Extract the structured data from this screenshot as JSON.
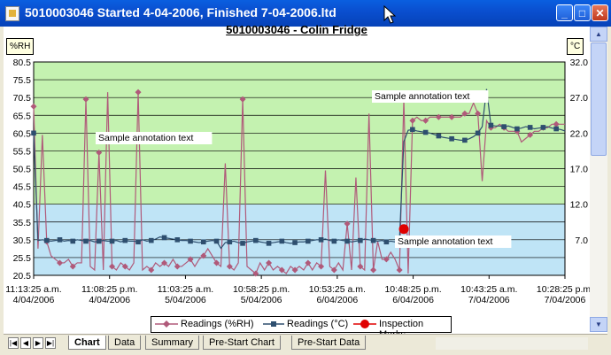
{
  "window": {
    "title": "5010003046 Started 4-04-2006, Finished 7-04-2006.ltd",
    "minimize": "_",
    "maximize": "□",
    "close": "✕"
  },
  "chart_data": {
    "type": "line",
    "title": "5010003046 - Colin Fridge",
    "left_axis": {
      "unit": "%RH",
      "ticks": [
        "80.5",
        "75.5",
        "70.5",
        "65.5",
        "60.5",
        "55.5",
        "50.5",
        "45.5",
        "40.5",
        "35.5",
        "30.5",
        "25.5",
        "20.5"
      ],
      "range": [
        20.5,
        80.5
      ]
    },
    "right_axis": {
      "unit": "°C",
      "ticks": [
        "32.0",
        "27.0",
        "22.0",
        "17.0",
        "12.0",
        "7.0"
      ],
      "range": [
        2.0,
        32.0
      ]
    },
    "x_ticks": [
      {
        "time": "11:13:25 a.m.",
        "date": "4/04/2006"
      },
      {
        "time": "11:08:25 p.m.",
        "date": "4/04/2006"
      },
      {
        "time": "11:03:25 a.m.",
        "date": "5/04/2006"
      },
      {
        "time": "10:58:25 p.m.",
        "date": "5/04/2006"
      },
      {
        "time": "10:53:25 a.m.",
        "date": "6/04/2006"
      },
      {
        "time": "10:48:25 p.m.",
        "date": "6/04/2006"
      },
      {
        "time": "10:43:25 a.m.",
        "date": "7/04/2006"
      },
      {
        "time": "10:28:25 p.m.",
        "date": "7/04/2006"
      }
    ],
    "bands": [
      {
        "name": "upper",
        "from_rh": 40.5,
        "to_rh": 80.5,
        "color": "#c4f2b0"
      },
      {
        "name": "lower",
        "from_rh": 20.5,
        "to_rh": 40.5,
        "color": "#bfe4f6"
      }
    ],
    "annotations": [
      "Sample annotation text",
      "Sample annotation text",
      "Sample annotation text"
    ],
    "series": [
      {
        "name": "Readings (%RH)",
        "color": "#b05a7a",
        "axis": "left",
        "values": [
          68,
          28,
          60,
          30,
          26,
          25,
          24,
          24,
          25,
          23,
          24,
          24,
          70,
          23,
          22,
          55,
          22,
          72,
          23,
          22,
          24,
          23,
          22,
          24,
          72,
          22,
          23,
          22,
          24,
          23,
          24,
          23,
          25,
          23,
          23,
          24,
          25,
          23,
          25,
          26,
          28,
          26,
          24,
          23,
          52,
          23,
          22,
          24,
          70,
          23,
          22,
          21,
          24,
          22,
          24,
          22,
          23,
          22,
          21,
          23,
          22,
          23,
          22,
          24,
          22,
          24,
          23,
          50,
          23,
          22,
          24,
          22,
          35,
          22,
          48,
          23,
          22,
          66,
          22,
          30,
          25,
          25,
          27,
          25,
          22,
          70,
          21,
          64,
          65,
          64,
          64,
          65,
          65,
          65,
          65,
          65,
          65,
          65,
          65,
          66,
          66,
          69,
          66,
          47,
          64,
          62,
          62,
          63,
          62,
          61,
          61,
          61,
          58,
          59,
          60,
          61,
          61,
          62,
          62,
          63,
          63,
          63,
          63
        ]
      },
      {
        "name": "Readings (°C)",
        "color": "#2e4f6f",
        "axis": "right",
        "values": [
          22.0,
          6.9,
          7.0,
          6.9,
          6.8,
          6.9,
          7.0,
          6.8,
          6.9,
          6.8,
          7.0,
          6.9,
          6.8,
          6.9,
          6.7,
          6.8,
          6.9,
          6.8,
          6.8,
          6.9,
          6.7,
          6.9,
          6.8,
          6.8,
          6.7,
          7.0,
          6.8,
          6.9,
          7.1,
          7.4,
          7.3,
          7.2,
          7.1,
          7.0,
          6.9,
          6.9,
          6.8,
          6.7,
          6.6,
          6.7,
          6.8,
          6.9,
          6.8,
          5.8,
          6.6,
          6.7,
          6.8,
          6.6,
          6.5,
          6.7,
          6.8,
          6.9,
          6.7,
          6.6,
          6.5,
          6.6,
          6.7,
          6.8,
          6.6,
          6.5,
          6.6,
          6.7,
          6.7,
          6.8,
          6.9,
          7.0,
          7.0,
          7.1,
          6.9,
          6.8,
          7.0,
          6.9,
          6.8,
          6.7,
          6.8,
          6.9,
          7.1,
          7.0,
          6.9,
          6.8,
          6.9,
          6.7,
          6.8,
          6.7,
          7.0,
          20.8,
          22.4,
          22.5,
          22.3,
          22.2,
          22.1,
          22.0,
          21.8,
          21.6,
          21.4,
          21.3,
          21.2,
          21.1,
          21.0,
          21.0,
          21.2,
          21.5,
          22.0,
          22.9,
          28.2,
          23.1,
          23.0,
          23.0,
          22.9,
          23.0,
          22.8,
          22.6,
          22.7,
          22.9,
          22.8,
          22.6,
          22.7,
          22.8,
          22.9,
          22.7,
          22.6,
          22.5,
          22.3
        ]
      }
    ],
    "inspection_marks": [
      {
        "series": "Readings (%RH)",
        "index": 85,
        "value": 70.5
      },
      {
        "series": "Readings (%RH)",
        "index": 85,
        "value": 33.5
      }
    ],
    "legend": [
      "Readings (%RH)",
      "Readings (°C)",
      "Inspection Marks"
    ],
    "legend_placement": "bottom-center",
    "grid": true
  },
  "tabs": [
    "Chart",
    "Data",
    "Summary",
    "Pre-Start Chart",
    "Pre-Start Data"
  ],
  "tab_nav": [
    "|◀",
    "◀",
    "▶",
    "▶|"
  ]
}
